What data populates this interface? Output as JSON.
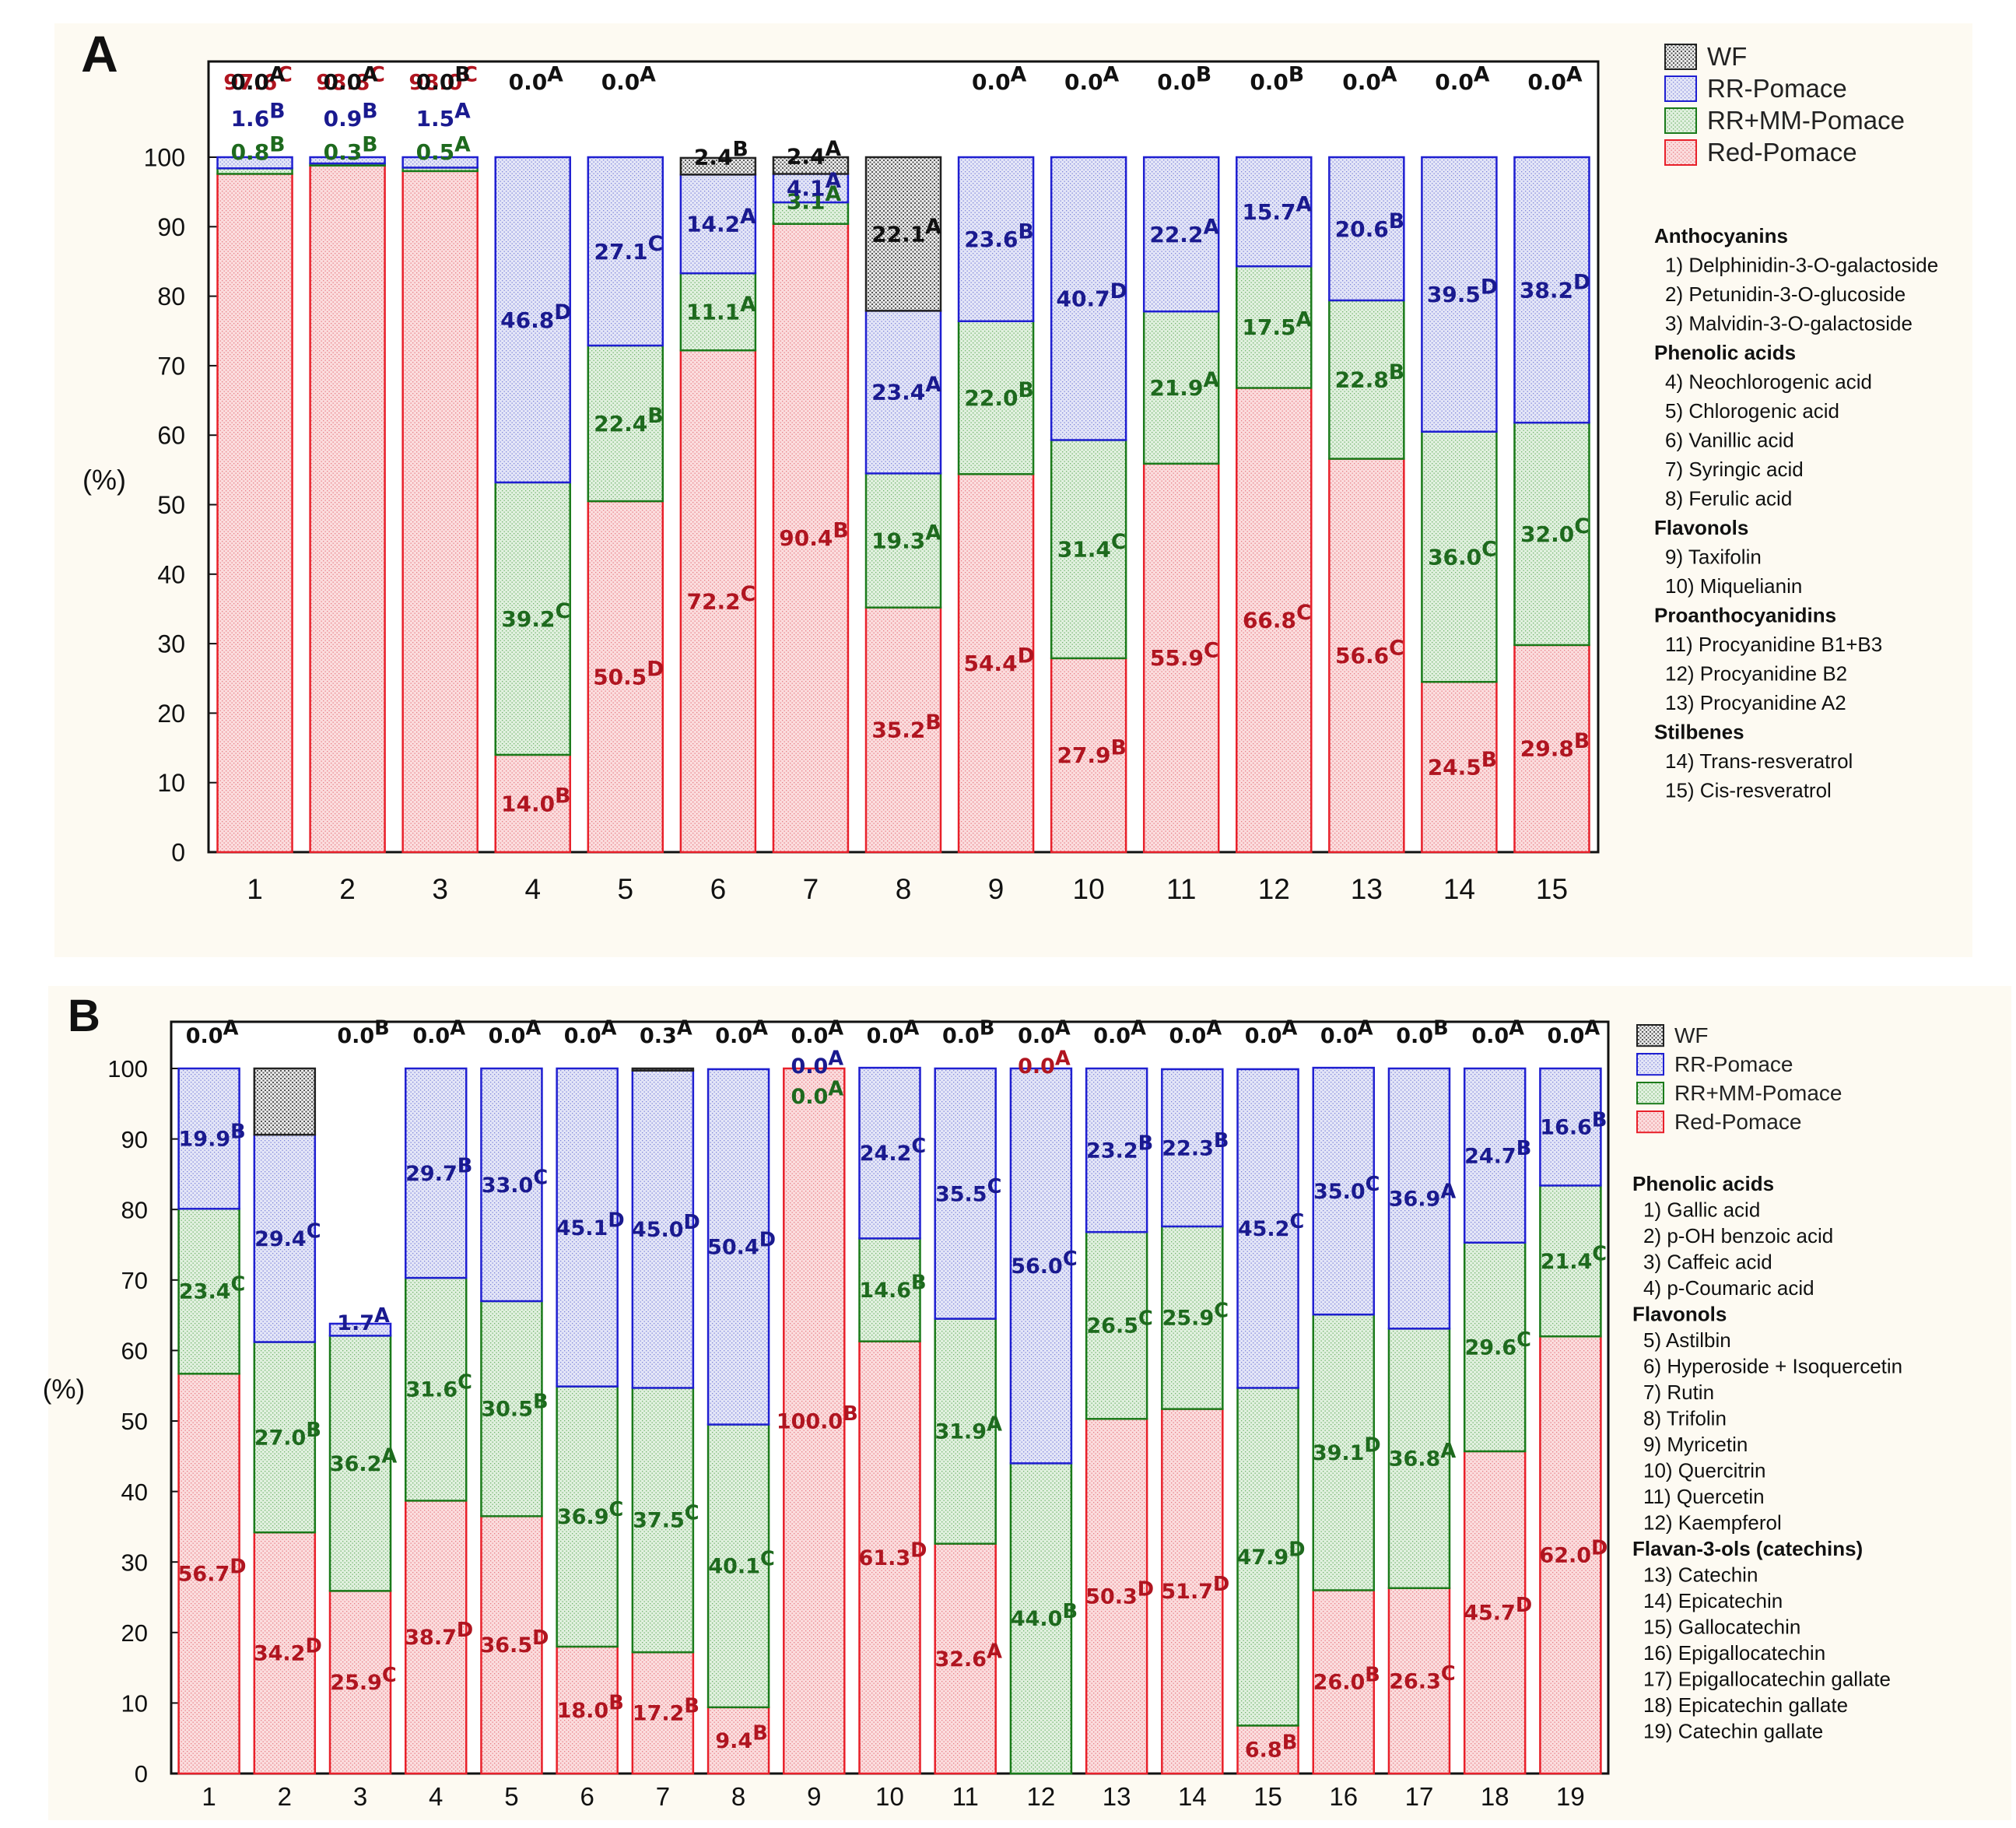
{
  "colors": {
    "wf": "#222222",
    "rr": "#1f1fd1",
    "rrmm": "#1a7a1a",
    "red": "#e8202a",
    "wf_fill": "#d4d4d4",
    "rr_fill": "#d9dcf3",
    "rrmm_fill": "#d5ecd3",
    "red_fill": "#f7c9cc",
    "label_wf": "#111111",
    "label_rr": "#1a1a8f",
    "label_rrmm": "#1e6a1e",
    "label_red": "#b01520",
    "panel_bg": "#fdfaf2"
  },
  "chart_data": [
    {
      "type": "bar",
      "stacked": true,
      "panel_label": "A",
      "ylabel": "(%)",
      "ylim": [
        0,
        100
      ],
      "yticks": [
        0,
        10,
        20,
        30,
        40,
        50,
        60,
        70,
        80,
        90,
        100
      ],
      "categories": [
        "1",
        "2",
        "3",
        "4",
        "5",
        "6",
        "7",
        "8",
        "9",
        "10",
        "11",
        "12",
        "13",
        "14",
        "15"
      ],
      "legend": [
        "WF",
        "RR-Pomace",
        "RR+MM-Pomace",
        "Red-Pomace"
      ],
      "series": [
        {
          "name": "Red-Pomace",
          "key": "red",
          "values": [
            97.6,
            98.8,
            98.0,
            14.0,
            50.5,
            72.2,
            90.4,
            35.2,
            54.4,
            27.9,
            55.9,
            66.8,
            56.6,
            24.5,
            29.8
          ],
          "labels": [
            "97.6",
            "98.8",
            "98.0",
            "14.0",
            "50.5",
            "72.2",
            "90.4",
            "35.2",
            "54.4",
            "27.9",
            "55.9",
            "66.8",
            "56.6",
            "24.5",
            "29.8"
          ],
          "letters": [
            "C",
            "C",
            "C",
            "B",
            "D",
            "C",
            "B",
            "B",
            "D",
            "B",
            "C",
            "C",
            "C",
            "B",
            "B"
          ]
        },
        {
          "name": "RR+MM-Pomace",
          "key": "rrmm",
          "values": [
            0.8,
            0.3,
            0.5,
            39.2,
            22.4,
            11.1,
            3.1,
            19.3,
            22.0,
            31.4,
            21.9,
            17.5,
            22.8,
            36.0,
            32.0
          ],
          "labels": [
            "0.8",
            "0.3",
            "0.5",
            "39.2",
            "22.4",
            "11.1",
            "3.1",
            "19.3",
            "22.0",
            "31.4",
            "21.9",
            "17.5",
            "22.8",
            "36.0",
            "32.0"
          ],
          "letters": [
            "B",
            "B",
            "A",
            "C",
            "B",
            "A",
            "A",
            "A",
            "B",
            "C",
            "A",
            "A",
            "B",
            "C",
            "C"
          ]
        },
        {
          "name": "RR-Pomace",
          "key": "rr",
          "values": [
            1.6,
            0.9,
            1.5,
            46.8,
            27.1,
            14.2,
            4.1,
            23.4,
            23.6,
            40.7,
            22.2,
            15.7,
            20.6,
            39.5,
            38.2
          ],
          "labels": [
            "1.6",
            "0.9",
            "1.5",
            "46.8",
            "27.1",
            "14.2",
            "4.1",
            "23.4",
            "23.6",
            "40.7",
            "22.2",
            "15.7",
            "20.6",
            "39.5",
            "38.2"
          ],
          "letters": [
            "B",
            "B",
            "A",
            "D",
            "C",
            "A",
            "A",
            "A",
            "B",
            "D",
            "A",
            "A",
            "B",
            "D",
            "D"
          ]
        },
        {
          "name": "WF",
          "key": "wf",
          "values": [
            0.0,
            0.0,
            0.0,
            0.0,
            0.0,
            2.4,
            2.4,
            22.1,
            0.0,
            0.0,
            0.0,
            0.0,
            0.0,
            0.0,
            0.0
          ],
          "labels": [
            "0.0",
            "0.0",
            "0.0",
            "0.0",
            "0.0",
            "2.4",
            "2.4",
            "22.1",
            "0.0",
            "0.0",
            "0.0",
            "0.0",
            "0.0",
            "0.0",
            "0.0"
          ],
          "letters": [
            "A",
            "A",
            "B",
            "A",
            "A",
            "B",
            "A",
            "A",
            "A",
            "A",
            "B",
            "B",
            "A",
            "A",
            "A"
          ]
        }
      ],
      "label_placement": [
        [
          "top",
          "top",
          "top",
          "in",
          "in",
          "in",
          "in",
          "in",
          "in",
          "in",
          "in",
          "in",
          "in",
          "in",
          "in"
        ],
        [
          "top",
          "top",
          "top",
          "in",
          "in",
          "in",
          "in",
          "in",
          "in",
          "in",
          "in",
          "in",
          "in",
          "in",
          "in"
        ],
        [
          "top",
          "top",
          "top",
          "in",
          "in",
          "in",
          "in",
          "in",
          "in",
          "in",
          "in",
          "in",
          "in",
          "in",
          "in"
        ],
        [
          "top",
          "top",
          "top",
          "top",
          "top",
          "in",
          "in",
          "in",
          "top",
          "top",
          "top",
          "top",
          "top",
          "top",
          "top"
        ]
      ],
      "footnote_groups": [
        {
          "heading": "Anthocyanins",
          "items": [
            "1) Delphinidin-3-O-galactoside",
            "2) Petunidin-3-O-glucoside",
            "3) Malvidin-3-O-galactoside"
          ]
        },
        {
          "heading": "Phenolic acids",
          "items": [
            "4) Neochlorogenic acid",
            "5) Chlorogenic acid",
            "6) Vanillic acid",
            "7) Syringic acid",
            "8) Ferulic acid"
          ]
        },
        {
          "heading": "Flavonols",
          "items": [
            "9) Taxifolin",
            "10) Miquelianin"
          ]
        },
        {
          "heading": "Proanthocyanidins",
          "items": [
            "11) Procyanidine B1+B3",
            "12) Procyanidine B2",
            "13) Procyanidine A2"
          ]
        },
        {
          "heading": "Stilbenes",
          "items": [
            "14) Trans-resveratrol",
            "15) Cis-resveratrol"
          ]
        }
      ]
    },
    {
      "type": "bar",
      "stacked": true,
      "panel_label": "B",
      "ylabel": "(%)",
      "ylim": [
        0,
        100
      ],
      "yticks": [
        0,
        10,
        20,
        30,
        40,
        50,
        60,
        70,
        80,
        90,
        100
      ],
      "categories": [
        "1",
        "2",
        "3",
        "4",
        "5",
        "6",
        "7",
        "8",
        "9",
        "10",
        "11",
        "12",
        "13",
        "14",
        "15",
        "16",
        "17",
        "18",
        "19"
      ],
      "legend": [
        "WF",
        "RR-Pomace",
        "RR+MM-Pomace",
        "Red-Pomace"
      ],
      "series": [
        {
          "name": "Red-Pomace",
          "key": "red",
          "values": [
            56.7,
            34.2,
            25.9,
            38.7,
            36.5,
            18.0,
            17.2,
            9.4,
            100.0,
            61.3,
            32.6,
            0.0,
            50.3,
            51.7,
            6.8,
            26.0,
            26.3,
            45.7,
            62.0
          ],
          "labels": [
            "56.7",
            "34.2",
            "25.9",
            "38.7",
            "36.5",
            "18.0",
            "17.2",
            "9.4",
            "100.0",
            "61.3",
            "32.6",
            "0.0",
            "50.3",
            "51.7",
            "6.8",
            "26.0",
            "26.3",
            "45.7",
            "62.0"
          ],
          "letters": [
            "D",
            "D",
            "C",
            "D",
            "D",
            "B",
            "B",
            "B",
            "B",
            "D",
            "A",
            "A",
            "D",
            "D",
            "B",
            "B",
            "C",
            "D",
            "D"
          ]
        },
        {
          "name": "RR+MM-Pomace",
          "key": "rrmm",
          "values": [
            23.4,
            27.0,
            36.2,
            31.6,
            30.5,
            36.9,
            37.5,
            40.1,
            0.0,
            14.6,
            31.9,
            44.0,
            26.5,
            25.9,
            47.9,
            39.1,
            36.8,
            29.6,
            21.4
          ],
          "labels": [
            "23.4",
            "27.0",
            "36.2",
            "31.6",
            "30.5",
            "36.9",
            "37.5",
            "40.1",
            "0.0",
            "14.6",
            "31.9",
            "44.0",
            "26.5",
            "25.9",
            "47.9",
            "39.1",
            "36.8",
            "29.6",
            "21.4"
          ],
          "letters": [
            "C",
            "B",
            "A",
            "C",
            "B",
            "C",
            "C",
            "C",
            "A",
            "B",
            "A",
            "B",
            "C",
            "C",
            "D",
            "D",
            "A",
            "C",
            "C"
          ]
        },
        {
          "name": "RR-Pomace",
          "key": "rr",
          "values": [
            19.9,
            29.4,
            1.7,
            29.7,
            33.0,
            45.1,
            45.0,
            50.4,
            0.0,
            24.2,
            35.5,
            56.0,
            23.2,
            22.3,
            45.2,
            35.0,
            36.9,
            24.7,
            16.6
          ],
          "labels": [
            "19.9",
            "29.4",
            "1.7",
            "29.7",
            "33.0",
            "45.1",
            "45.0",
            "50.4",
            "0.0",
            "24.2",
            "35.5",
            "56.0",
            "23.2",
            "22.3",
            "45.2",
            "35.0",
            "36.9",
            "24.7",
            "16.6"
          ],
          "letters": [
            "B",
            "C",
            "A",
            "B",
            "C",
            "D",
            "D",
            "D",
            "A",
            "C",
            "C",
            "C",
            "B",
            "B",
            "C",
            "C",
            "A",
            "B",
            "B"
          ]
        },
        {
          "name": "WF",
          "key": "wf",
          "values": [
            0.0,
            9.4,
            0.0,
            0.0,
            0.0,
            0.0,
            0.3,
            0.0,
            0.0,
            0.0,
            0.0,
            0.0,
            0.0,
            0.0,
            0.0,
            0.0,
            0.0,
            0.0,
            0.0
          ],
          "labels": [
            "0.0",
            "9.4",
            "0.0",
            "0.0",
            "0.0",
            "0.0",
            "0.3",
            "0.0",
            "0.0",
            "0.0",
            "0.0",
            "0.0",
            "0.0",
            "0.0",
            "0.0",
            "0.0",
            "0.0",
            "0.0",
            "0.0"
          ],
          "letters": [
            "A",
            "A",
            "B",
            "A",
            "A",
            "A",
            "A",
            "A",
            "A",
            "A",
            "B",
            "A",
            "A",
            "A",
            "A",
            "A",
            "B",
            "A",
            "A"
          ]
        }
      ],
      "label_placement": [
        [
          "in",
          "in",
          "in",
          "in",
          "in",
          "in",
          "in",
          "in",
          "in",
          "in",
          "in",
          "top",
          "in",
          "in",
          "in",
          "in",
          "in",
          "in",
          "in"
        ],
        [
          "in",
          "in",
          "in",
          "in",
          "in",
          "in",
          "in",
          "in",
          "top",
          "in",
          "in",
          "in",
          "in",
          "in",
          "in",
          "in",
          "in",
          "in",
          "in"
        ],
        [
          "in",
          "in",
          "in",
          "in",
          "in",
          "in",
          "in",
          "in",
          "top",
          "in",
          "in",
          "in",
          "in",
          "in",
          "in",
          "in",
          "in",
          "in",
          "in"
        ],
        [
          "top",
          "none",
          "top",
          "top",
          "top",
          "top",
          "top",
          "top",
          "top",
          "top",
          "top",
          "top",
          "top",
          "top",
          "top",
          "top",
          "top",
          "top",
          "top"
        ]
      ],
      "footnote_groups": [
        {
          "heading": "Phenolic acids",
          "items": [
            "1) Gallic acid",
            "2) p-OH benzoic acid",
            "3) Caffeic acid",
            "4) p-Coumaric acid"
          ]
        },
        {
          "heading": "Flavonols",
          "items": [
            "5) Astilbin",
            "6) Hyperoside + Isoquercetin",
            "7) Rutin",
            "8) Trifolin",
            "9) Myricetin",
            "10) Quercitrin",
            "11) Quercetin",
            "12) Kaempferol"
          ]
        },
        {
          "heading": "Flavan-3-ols (catechins)",
          "items": [
            "13) Catechin",
            "14) Epicatechin",
            "15) Gallocatechin",
            "16) Epigallocatechin",
            "17) Epigallocatechin gallate",
            "18) Epicatechin gallate",
            "19) Catechin gallate"
          ]
        }
      ]
    }
  ]
}
